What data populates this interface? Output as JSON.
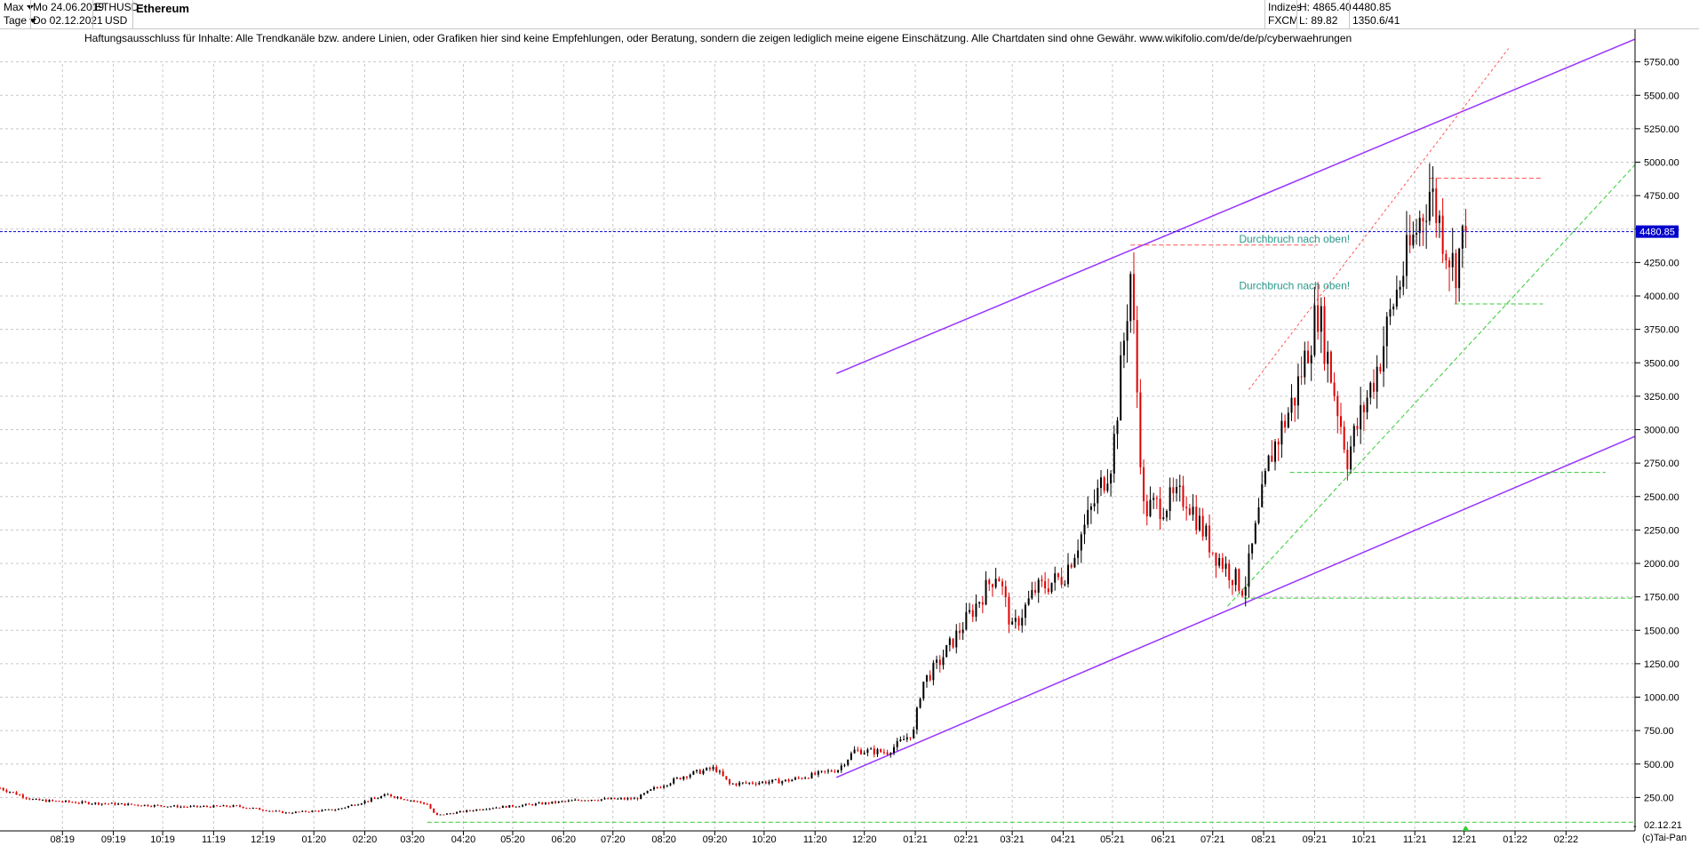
{
  "header": {
    "range_label": "Max",
    "period_label": "Tage",
    "date_from": "Mo 24.06.2019",
    "date_to": "Do 02.12.2021",
    "symbol": "ETHUSD",
    "currency": "USD",
    "name": "Ethereum",
    "exchange_group": "Indizes",
    "exchange": "FXCM",
    "high": "H: 4865.40",
    "low": "L: 89.82",
    "last": "4480.85",
    "change": "1350.6/41"
  },
  "disclaimer": "Haftungsausschluss für Inhalte: Alle Trendkanäle bzw. andere Linien, oder Grafiken hier sind keine Empfehlungen, oder Beratung, sondern die zeigen lediglich meine eigene Einschätzung. Alle Chartdaten sind ohne Gewähr.  www.wikifolio.com/de/de/p/cyberwaehrungen",
  "footer": {
    "copyright": "(c)Tai-Pan",
    "current_date": "02.12.21",
    "minus": "-"
  },
  "colors": {
    "up_candle": "#000000",
    "down_candle": "#e00000",
    "channel": "#9933ff",
    "current_line": "#0000cc",
    "support": "#33cc33",
    "resistance": "#ff5555",
    "annotation": "#2a9a8a",
    "grid": "#c8c8c8"
  },
  "chart_data": {
    "type": "candlestick",
    "title": "Ethereum",
    "y_axis": {
      "min": 0,
      "max": 6000,
      "position": "right",
      "ticks": [
        "250.00",
        "500.00",
        "750.00",
        "1000.00",
        "1250.00",
        "1500.00",
        "1750.00",
        "2000.00",
        "2250.00",
        "2500.00",
        "2750.00",
        "3000.00",
        "3250.00",
        "3500.00",
        "3750.00",
        "4000.00",
        "4250.00",
        "4500.00",
        "4750.00",
        "5000.00",
        "5250.00",
        "5500.00",
        "5750.00"
      ]
    },
    "x_axis": {
      "start": "2019-06-24",
      "end": "2022-03-15",
      "ticks": [
        {
          "label": "08:19",
          "date": "2019-08-01"
        },
        {
          "label": "09:19",
          "date": "2019-09-01"
        },
        {
          "label": "10:19",
          "date": "2019-10-01"
        },
        {
          "label": "11:19",
          "date": "2019-11-01"
        },
        {
          "label": "12:19",
          "date": "2019-12-01"
        },
        {
          "label": "01:20",
          "date": "2020-01-01"
        },
        {
          "label": "02:20",
          "date": "2020-02-01"
        },
        {
          "label": "03:20",
          "date": "2020-03-01"
        },
        {
          "label": "04:20",
          "date": "2020-04-01"
        },
        {
          "label": "05:20",
          "date": "2020-05-01"
        },
        {
          "label": "06:20",
          "date": "2020-06-01"
        },
        {
          "label": "07:20",
          "date": "2020-07-01"
        },
        {
          "label": "08:20",
          "date": "2020-08-01"
        },
        {
          "label": "09:20",
          "date": "2020-09-01"
        },
        {
          "label": "10:20",
          "date": "2020-10-01"
        },
        {
          "label": "11:20",
          "date": "2020-11-01"
        },
        {
          "label": "12:20",
          "date": "2020-12-01"
        },
        {
          "label": "01:21",
          "date": "2021-01-01"
        },
        {
          "label": "02:21",
          "date": "2021-02-01"
        },
        {
          "label": "03:21",
          "date": "2021-03-01"
        },
        {
          "label": "04:21",
          "date": "2021-04-01"
        },
        {
          "label": "05:21",
          "date": "2021-05-01"
        },
        {
          "label": "06:21",
          "date": "2021-06-01"
        },
        {
          "label": "07:21",
          "date": "2021-07-01"
        },
        {
          "label": "08:21",
          "date": "2021-08-01"
        },
        {
          "label": "09:21",
          "date": "2021-09-01"
        },
        {
          "label": "10:21",
          "date": "2021-10-01"
        },
        {
          "label": "11:21",
          "date": "2021-11-01"
        },
        {
          "label": "12:21",
          "date": "2021-12-01"
        },
        {
          "label": "01:22",
          "date": "2022-01-01"
        },
        {
          "label": "02:22",
          "date": "2022-02-01"
        }
      ]
    },
    "price_path": [
      {
        "date": "2019-06-24",
        "close": 320
      },
      {
        "date": "2019-07-15",
        "close": 230
      },
      {
        "date": "2019-08-15",
        "close": 210
      },
      {
        "date": "2019-09-15",
        "close": 195
      },
      {
        "date": "2019-10-15",
        "close": 180
      },
      {
        "date": "2019-11-15",
        "close": 185
      },
      {
        "date": "2019-12-15",
        "close": 135
      },
      {
        "date": "2020-01-15",
        "close": 160
      },
      {
        "date": "2020-02-15",
        "close": 270
      },
      {
        "date": "2020-03-10",
        "close": 200
      },
      {
        "date": "2020-03-15",
        "close": 115
      },
      {
        "date": "2020-04-15",
        "close": 170
      },
      {
        "date": "2020-05-15",
        "close": 200
      },
      {
        "date": "2020-06-15",
        "close": 235
      },
      {
        "date": "2020-07-15",
        "close": 240
      },
      {
        "date": "2020-07-25",
        "close": 310
      },
      {
        "date": "2020-08-15",
        "close": 420
      },
      {
        "date": "2020-09-01",
        "close": 470
      },
      {
        "date": "2020-09-10",
        "close": 350
      },
      {
        "date": "2020-10-15",
        "close": 375
      },
      {
        "date": "2020-11-15",
        "close": 460
      },
      {
        "date": "2020-11-25",
        "close": 600
      },
      {
        "date": "2020-12-15",
        "close": 590
      },
      {
        "date": "2020-12-31",
        "close": 740
      },
      {
        "date": "2021-01-05",
        "close": 1100
      },
      {
        "date": "2021-01-15",
        "close": 1250
      },
      {
        "date": "2021-02-10",
        "close": 1750
      },
      {
        "date": "2021-02-20",
        "close": 1950
      },
      {
        "date": "2021-03-01",
        "close": 1500
      },
      {
        "date": "2021-03-15",
        "close": 1800
      },
      {
        "date": "2021-04-01",
        "close": 1900
      },
      {
        "date": "2021-04-15",
        "close": 2300
      },
      {
        "date": "2021-05-01",
        "close": 2800
      },
      {
        "date": "2021-05-12",
        "close": 4170
      },
      {
        "date": "2021-05-20",
        "close": 2400
      },
      {
        "date": "2021-06-15",
        "close": 2500
      },
      {
        "date": "2021-07-01",
        "close": 2100
      },
      {
        "date": "2021-07-20",
        "close": 1800
      },
      {
        "date": "2021-08-05",
        "close": 2800
      },
      {
        "date": "2021-08-20",
        "close": 3250
      },
      {
        "date": "2021-09-03",
        "close": 3900
      },
      {
        "date": "2021-09-21",
        "close": 2800
      },
      {
        "date": "2021-10-10",
        "close": 3500
      },
      {
        "date": "2021-10-20",
        "close": 4000
      },
      {
        "date": "2021-11-10",
        "close": 4800
      },
      {
        "date": "2021-11-25",
        "close": 4200
      },
      {
        "date": "2021-12-02",
        "close": 4480
      }
    ],
    "current_price": 4480.85,
    "annotations": [
      {
        "text": "Durchbruch nach oben!",
        "date": "2021-07-17",
        "value": 4400
      },
      {
        "text": "Durchbruch nach oben!",
        "date": "2021-07-17",
        "value": 4050
      }
    ],
    "trendlines": [
      {
        "kind": "channel-upper",
        "color": "channel",
        "style": "solid",
        "from": {
          "date": "2020-11-14",
          "value": 3420
        },
        "to": {
          "date": "2022-03-15",
          "value": 5920
        }
      },
      {
        "kind": "channel-lower",
        "color": "channel",
        "style": "solid",
        "from": {
          "date": "2020-11-14",
          "value": 400
        },
        "to": {
          "date": "2022-03-15",
          "value": 2950
        }
      },
      {
        "kind": "resistance",
        "color": "resistance",
        "style": "dashed",
        "from": {
          "date": "2021-05-12",
          "value": 4380
        },
        "to": {
          "date": "2021-09-03",
          "value": 4380
        }
      },
      {
        "kind": "resistance",
        "color": "resistance",
        "style": "dashed",
        "from": {
          "date": "2021-11-10",
          "value": 4880
        },
        "to": {
          "date": "2022-01-18",
          "value": 4880
        }
      },
      {
        "kind": "resistance",
        "color": "resistance",
        "style": "dotted",
        "from": {
          "date": "2021-07-23",
          "value": 3300
        },
        "to": {
          "date": "2021-12-28",
          "value": 5850
        }
      },
      {
        "kind": "support",
        "color": "support",
        "style": "dashed",
        "from": {
          "date": "2021-07-20",
          "value": 1740
        },
        "to": {
          "date": "2022-03-15",
          "value": 1740
        }
      },
      {
        "kind": "support",
        "color": "support",
        "style": "dashed",
        "from": {
          "date": "2021-08-17",
          "value": 2680
        },
        "to": {
          "date": "2022-02-25",
          "value": 2680
        }
      },
      {
        "kind": "support",
        "color": "support",
        "style": "dashed",
        "from": {
          "date": "2021-11-25",
          "value": 3940
        },
        "to": {
          "date": "2022-01-18",
          "value": 3940
        }
      },
      {
        "kind": "support",
        "color": "support",
        "style": "dashed",
        "from": {
          "date": "2021-07-10",
          "value": 1680
        },
        "to": {
          "date": "2022-03-15",
          "value": 4980
        }
      },
      {
        "kind": "support",
        "color": "support",
        "style": "dashed",
        "from": {
          "date": "2020-03-10",
          "value": 65
        },
        "to": {
          "date": "2022-03-15",
          "value": 65
        }
      }
    ]
  }
}
